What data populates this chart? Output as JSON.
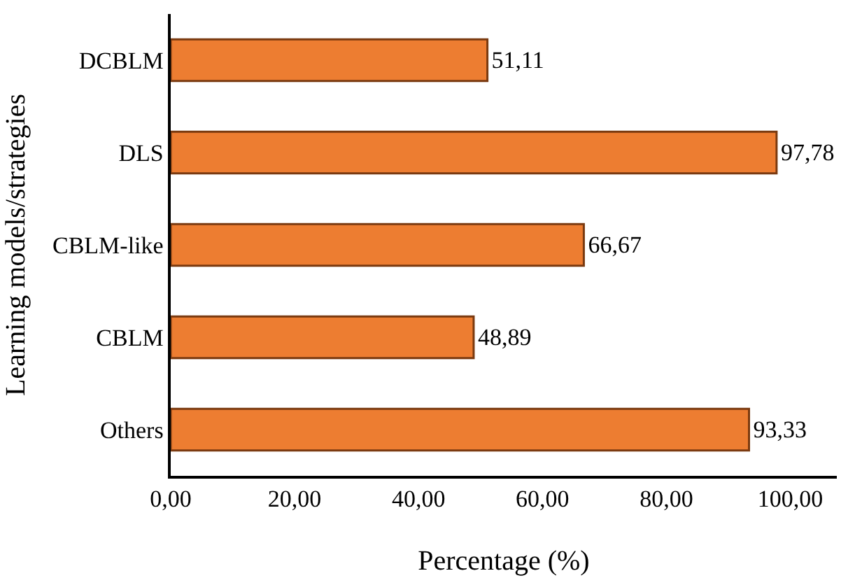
{
  "chart_data": {
    "type": "bar",
    "orientation": "horizontal",
    "categories": [
      "DCBLM",
      "DLS",
      "CBLM-like",
      "CBLM",
      "Others"
    ],
    "values": [
      51.11,
      97.78,
      66.67,
      48.89,
      93.33
    ],
    "value_labels": [
      "51,11",
      "97,78",
      "66,67",
      "48,89",
      "93,33"
    ],
    "color": "#ed7d31",
    "xlabel": "Percentage (%)",
    "ylabel": "Learning models/strategies",
    "xlim": [
      0,
      107.5
    ],
    "xticks": [
      {
        "value": 0,
        "label": "0,00"
      },
      {
        "value": 20,
        "label": "20,00"
      },
      {
        "value": 40,
        "label": "40,00"
      },
      {
        "value": 60,
        "label": "60,00"
      },
      {
        "value": 80,
        "label": "80,00"
      },
      {
        "value": 100,
        "label": "100,00"
      }
    ],
    "grid": false
  }
}
